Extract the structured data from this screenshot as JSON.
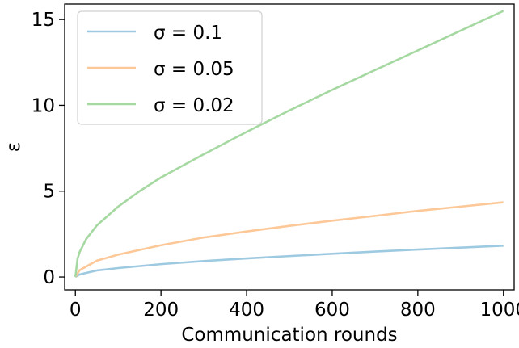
{
  "chart_data": {
    "type": "line",
    "xlabel": "Communication rounds",
    "ylabel": "ε",
    "xlim": [
      -25,
      1025
    ],
    "ylim": [
      -0.75,
      15.9
    ],
    "xticks": [
      0,
      200,
      400,
      600,
      800,
      1000
    ],
    "yticks": [
      0,
      5,
      10,
      15
    ],
    "grid": false,
    "legend_position": "top-left",
    "series": [
      {
        "name": "σ = 0.1",
        "color": "#9ecae1",
        "x": [
          0,
          10,
          50,
          100,
          200,
          300,
          400,
          500,
          600,
          700,
          800,
          900,
          1000
        ],
        "y": [
          0,
          0.15,
          0.38,
          0.52,
          0.75,
          0.93,
          1.08,
          1.22,
          1.35,
          1.48,
          1.6,
          1.71,
          1.82
        ]
      },
      {
        "name": "σ = 0.05",
        "color": "#fdc898",
        "x": [
          0,
          10,
          50,
          100,
          200,
          300,
          400,
          500,
          600,
          700,
          800,
          900,
          1000
        ],
        "y": [
          0,
          0.4,
          0.95,
          1.3,
          1.85,
          2.3,
          2.65,
          2.98,
          3.28,
          3.56,
          3.85,
          4.1,
          4.35
        ]
      },
      {
        "name": "σ = 0.02",
        "color": "#a6d9a2",
        "x": [
          0,
          5,
          10,
          25,
          50,
          100,
          150,
          200,
          300,
          400,
          500,
          600,
          700,
          800,
          900,
          1000
        ],
        "y": [
          0,
          1.05,
          1.45,
          2.2,
          3.0,
          4.1,
          5.0,
          5.8,
          7.15,
          8.45,
          9.7,
          10.9,
          12.05,
          13.2,
          14.35,
          15.5
        ]
      }
    ]
  }
}
